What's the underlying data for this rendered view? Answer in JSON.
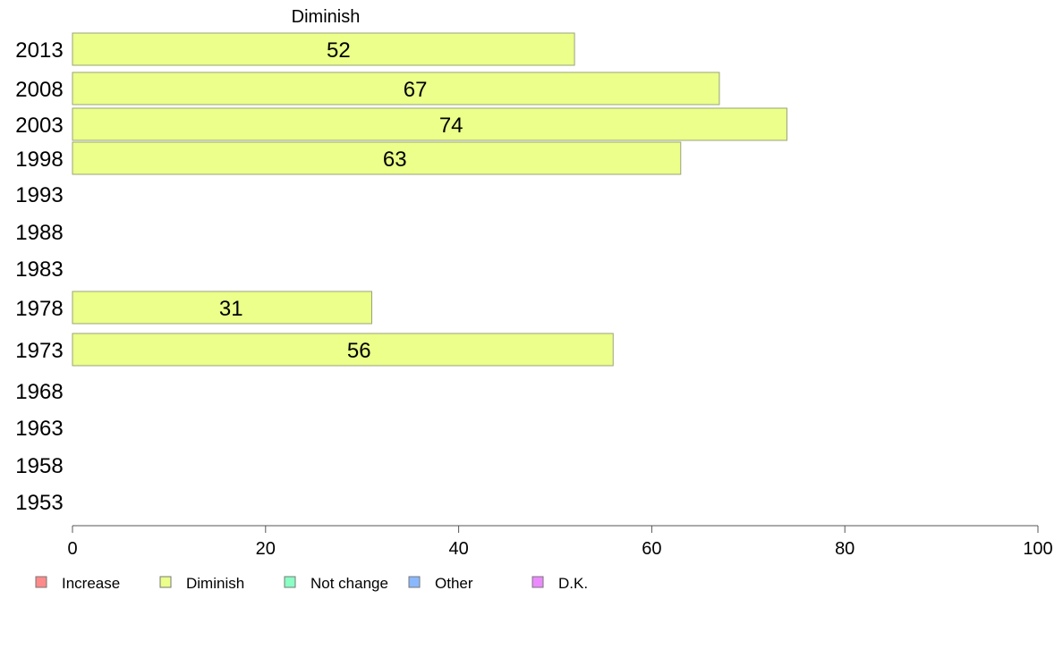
{
  "chart_data": {
    "type": "bar",
    "orientation": "horizontal",
    "title": "Diminish",
    "categories": [
      "2013",
      "2008",
      "2003",
      "1998",
      "1993",
      "1988",
      "1983",
      "1978",
      "1973",
      "1968",
      "1963",
      "1958",
      "1953"
    ],
    "series": [
      {
        "name": "Diminish",
        "color": "#EBFF8A",
        "values": [
          52,
          67,
          74,
          63,
          null,
          null,
          null,
          31,
          56,
          null,
          null,
          null,
          null
        ]
      }
    ],
    "xlim": [
      0,
      100
    ],
    "xticks": [
      0,
      20,
      40,
      60,
      80,
      100
    ],
    "grid": false,
    "legend": {
      "placement": "bottom-left",
      "items": [
        {
          "label": "Increase",
          "color": "#FF8A8A"
        },
        {
          "label": "Diminish",
          "color": "#EBFF8A"
        },
        {
          "label": "Not change",
          "color": "#8AFFC4"
        },
        {
          "label": "Other",
          "color": "#8AB8FF"
        },
        {
          "label": "D.K.",
          "color": "#EB8AFF"
        }
      ]
    }
  }
}
